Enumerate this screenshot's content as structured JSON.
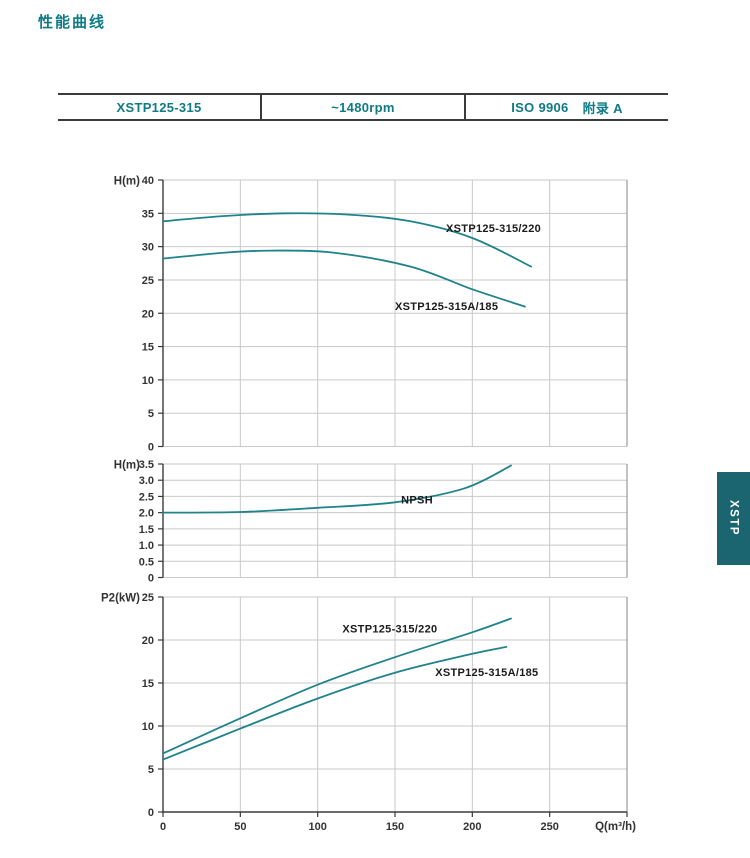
{
  "page": {
    "title": "性能曲线"
  },
  "header_table": {
    "model": "XSTP125-315",
    "speed": "~1480rpm",
    "standard": "ISO 9906",
    "annex": "附录 A"
  },
  "side_tab": {
    "label": "XSTP"
  },
  "colors": {
    "teal_text": "#0e7b85",
    "curve": "#1f838b",
    "tab_bg": "#1a6570",
    "grid": "#c9c9c9",
    "axis": "#3b3b3b",
    "right_border": "#999999",
    "tick_text": "#333333",
    "annotation_text": "#1a1a1a"
  },
  "chart_data": [
    {
      "id": "head-curves",
      "type": "line",
      "ylabel": "H(m)",
      "ylim": [
        0,
        40
      ],
      "yticks": [
        0,
        5,
        10,
        15,
        20,
        25,
        30,
        35,
        40
      ],
      "ytick_labels": [
        "0",
        "5",
        "10",
        "15",
        "20",
        "25",
        "30",
        "35",
        "40"
      ],
      "xlim": [
        0,
        300
      ],
      "xticks": [
        0,
        50,
        100,
        150,
        200,
        250
      ],
      "grid": true,
      "series": [
        {
          "name": "XSTP125-315/220",
          "points": [
            [
              0,
              33.8
            ],
            [
              40,
              34.6
            ],
            [
              80,
              35.0
            ],
            [
              120,
              34.8
            ],
            [
              160,
              33.8
            ],
            [
              200,
              31.3
            ],
            [
              238,
              27.0
            ]
          ]
        },
        {
          "name": "XSTP125-315A/185",
          "points": [
            [
              0,
              28.2
            ],
            [
              40,
              29.1
            ],
            [
              70,
              29.4
            ],
            [
              110,
              29.1
            ],
            [
              160,
              27.0
            ],
            [
              200,
              23.6
            ],
            [
              234,
              21.0
            ]
          ]
        }
      ],
      "annotations": [
        {
          "text": "XSTP125-315/220",
          "x": 183,
          "y": 32.2
        },
        {
          "text": "XSTP125-315A/185",
          "x": 150,
          "y": 20.5
        }
      ]
    },
    {
      "id": "npsh-curve",
      "type": "line",
      "ylabel": "H(m)",
      "ylim": [
        0,
        3.5
      ],
      "yticks": [
        0,
        0.5,
        1.0,
        1.5,
        2.0,
        2.5,
        3.0,
        3.5
      ],
      "ytick_labels": [
        "0",
        "0.5",
        "1.0",
        "1.5",
        "2.0",
        "2.5",
        "3.0",
        "3.5"
      ],
      "xlim": [
        0,
        300
      ],
      "xticks": [
        0,
        50,
        100,
        150,
        200,
        250
      ],
      "grid": true,
      "series": [
        {
          "name": "NPSH",
          "points": [
            [
              0,
              2.0
            ],
            [
              50,
              2.02
            ],
            [
              100,
              2.15
            ],
            [
              150,
              2.32
            ],
            [
              195,
              2.75
            ],
            [
              225,
              3.45
            ]
          ]
        }
      ],
      "annotations": [
        {
          "text": "NPSH",
          "x": 154,
          "y": 2.28
        }
      ]
    },
    {
      "id": "power-curves",
      "type": "line",
      "ylabel": "P2(kW)",
      "xlabel": "Q(m³/h)",
      "ylim": [
        0,
        25
      ],
      "yticks": [
        0,
        5,
        10,
        15,
        20,
        25
      ],
      "ytick_labels": [
        "0",
        "5",
        "10",
        "15",
        "20",
        "25"
      ],
      "xlim": [
        0,
        300
      ],
      "xticks": [
        0,
        50,
        100,
        150,
        200,
        250
      ],
      "xtick_labels": [
        "0",
        "50",
        "100",
        "150",
        "200",
        "250"
      ],
      "grid": true,
      "series": [
        {
          "name": "XSTP125-315/220",
          "points": [
            [
              0,
              6.8
            ],
            [
              50,
              10.9
            ],
            [
              100,
              14.8
            ],
            [
              150,
              18.0
            ],
            [
              200,
              20.9
            ],
            [
              225,
              22.5
            ]
          ]
        },
        {
          "name": "XSTP125-315A/185",
          "points": [
            [
              0,
              6.1
            ],
            [
              50,
              9.7
            ],
            [
              100,
              13.2
            ],
            [
              150,
              16.2
            ],
            [
              200,
              18.4
            ],
            [
              222,
              19.2
            ]
          ]
        }
      ],
      "annotations": [
        {
          "text": "XSTP125-315/220",
          "x": 116,
          "y": 20.9
        },
        {
          "text": "XSTP125-315A/185",
          "x": 176,
          "y": 15.8
        }
      ]
    }
  ]
}
